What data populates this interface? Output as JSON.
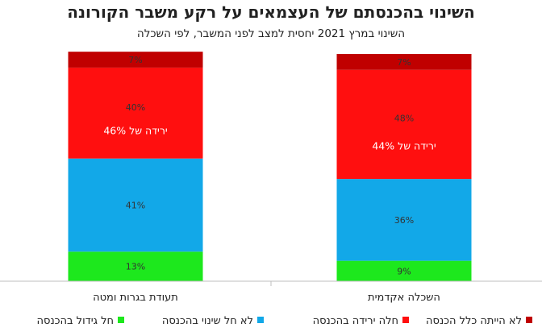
{
  "chart_data": {
    "type": "bar",
    "stacked": true,
    "title": "השינוי בהכנסתם של העצמאים על רקע משבר הקורונה",
    "subtitle": "השינוי במרץ 2021 יחסית למצב לפני המשבר, לפי השכלה",
    "categories": [
      "השכלה אקדמית",
      "תעודת בגרות ומטה"
    ],
    "series": [
      {
        "name": "חל גידול בהכנסה",
        "color": "#1de81d",
        "values": [
          9,
          13
        ],
        "labels": [
          "9%",
          "13%"
        ]
      },
      {
        "name": "לא חל שינוי בהכנסה",
        "color": "#12a8e8",
        "values": [
          36,
          41
        ],
        "labels": [
          "36%",
          "41%"
        ]
      },
      {
        "name": "חלה ירידה בהכנסה",
        "color": "#ff0f0f",
        "values": [
          48,
          40
        ],
        "labels": [
          "48%",
          "40%"
        ]
      },
      {
        "name": "לא הייתה כלל הכנסה",
        "color": "#c00000",
        "values": [
          7,
          7
        ],
        "labels": [
          "7%",
          "7%"
        ]
      }
    ],
    "annotations": [
      "ירידה של 44%",
      "ירידה של 46%"
    ],
    "ylim": [
      0,
      100
    ],
    "legend": "bottom",
    "grid": false
  }
}
